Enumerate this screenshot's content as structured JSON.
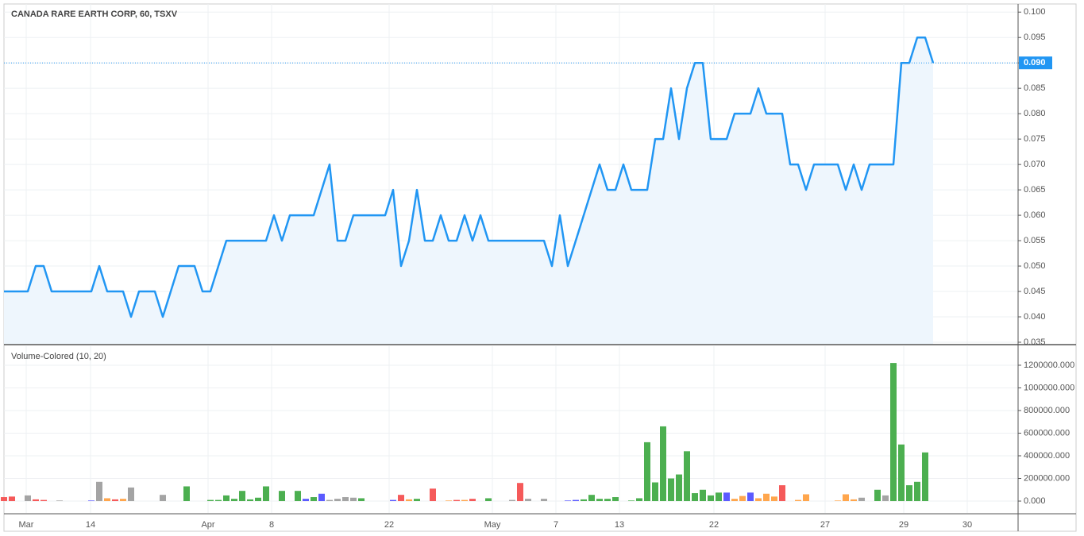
{
  "chart_data": [
    {
      "type": "line",
      "title": "CANADA RARE EARTH CORP, 60, TSXV",
      "color": "#2196f3",
      "fill": "#eef6fd",
      "values": [
        0.045,
        0.045,
        0.045,
        0.045,
        0.05,
        0.05,
        0.045,
        0.045,
        0.045,
        0.045,
        0.045,
        0.045,
        0.05,
        0.045,
        0.045,
        0.045,
        0.04,
        0.045,
        0.045,
        0.045,
        0.04,
        0.045,
        0.05,
        0.05,
        0.05,
        0.045,
        0.045,
        0.05,
        0.055,
        0.055,
        0.055,
        0.055,
        0.055,
        0.055,
        0.06,
        0.055,
        0.06,
        0.06,
        0.06,
        0.06,
        0.065,
        0.07,
        0.055,
        0.055,
        0.06,
        0.06,
        0.06,
        0.06,
        0.06,
        0.065,
        0.05,
        0.055,
        0.065,
        0.055,
        0.055,
        0.06,
        0.055,
        0.055,
        0.06,
        0.055,
        0.06,
        0.055,
        0.055,
        0.055,
        0.055,
        0.055,
        0.055,
        0.055,
        0.055,
        0.05,
        0.06,
        0.05,
        0.055,
        0.06,
        0.065,
        0.07,
        0.065,
        0.065,
        0.07,
        0.065,
        0.065,
        0.065,
        0.075,
        0.075,
        0.085,
        0.075,
        0.085,
        0.09,
        0.09,
        0.075,
        0.075,
        0.075,
        0.08,
        0.08,
        0.08,
        0.085,
        0.08,
        0.08,
        0.08,
        0.07,
        0.07,
        0.065,
        0.07,
        0.07,
        0.07,
        0.07,
        0.065,
        0.07,
        0.065,
        0.07,
        0.07,
        0.07,
        0.07,
        0.09,
        0.09,
        0.095,
        0.095,
        0.09
      ],
      "xlim": [
        0,
        127.7
      ],
      "ylim": [
        0.035,
        0.1016
      ],
      "yticks": [
        {
          "value": 0.035,
          "label": "0.035"
        },
        {
          "value": 0.04,
          "label": "0.040"
        },
        {
          "value": 0.045,
          "label": "0.045"
        },
        {
          "value": 0.05,
          "label": "0.050"
        },
        {
          "value": 0.055,
          "label": "0.055"
        },
        {
          "value": 0.06,
          "label": "0.060"
        },
        {
          "value": 0.065,
          "label": "0.065"
        },
        {
          "value": 0.07,
          "label": "0.070"
        },
        {
          "value": 0.075,
          "label": "0.075"
        },
        {
          "value": 0.08,
          "label": "0.080"
        },
        {
          "value": 0.085,
          "label": "0.085"
        },
        {
          "value": 0.09,
          "label": "0.090"
        },
        {
          "value": 0.095,
          "label": "0.095"
        },
        {
          "value": 0.1,
          "label": "0.100"
        }
      ],
      "price_line": {
        "value": 0.09,
        "label": "0.090"
      },
      "grid": true
    },
    {
      "type": "bar",
      "title": "Volume-Colored (10, 20)",
      "values": [
        35000,
        40000,
        0,
        50000,
        15000,
        10000,
        0,
        5000,
        0,
        0,
        0,
        5000,
        170000,
        25000,
        15000,
        20000,
        120000,
        0,
        0,
        0,
        55000,
        0,
        0,
        130000,
        0,
        0,
        10000,
        10000,
        50000,
        20000,
        90000,
        15000,
        30000,
        130000,
        0,
        90000,
        0,
        90000,
        20000,
        35000,
        65000,
        10000,
        20000,
        35000,
        30000,
        25000,
        0,
        0,
        0,
        10000,
        55000,
        15000,
        20000,
        0,
        110000,
        0,
        5000,
        10000,
        10000,
        20000,
        0,
        25000,
        0,
        0,
        10000,
        160000,
        20000,
        0,
        20000,
        0,
        0,
        5000,
        10000,
        15000,
        55000,
        20000,
        20000,
        35000,
        0,
        5000,
        25000,
        520000,
        165000,
        660000,
        200000,
        235000,
        440000,
        70000,
        100000,
        50000,
        75000,
        75000,
        20000,
        45000,
        75000,
        25000,
        65000,
        40000,
        140000,
        0,
        10000,
        60000,
        0,
        0,
        0,
        5000,
        60000,
        15000,
        30000,
        0,
        100000,
        50000,
        1220000,
        500000,
        140000,
        170000,
        430000,
        0
      ],
      "colors": [
        "#f55a5a",
        "#f55a5a",
        "#a4a4a4",
        "#a4a4a4",
        "#f55a5a",
        "#f55a5a",
        "#a4a4a4",
        "#a4a4a4",
        "#a4a4a4",
        "#a4a4a4",
        "#a4a4a4",
        "#5b5bff",
        "#a4a4a4",
        "#ffa64d",
        "#f55a5a",
        "#ffa64d",
        "#a4a4a4",
        "#a4a4a4",
        "#a4a4a4",
        "#a4a4a4",
        "#a4a4a4",
        "#a4a4a4",
        "#a4a4a4",
        "#4caf50",
        "#a4a4a4",
        "#a4a4a4",
        "#4caf50",
        "#4caf50",
        "#4caf50",
        "#4caf50",
        "#4caf50",
        "#4caf50",
        "#4caf50",
        "#4caf50",
        "#a4a4a4",
        "#4caf50",
        "#a4a4a4",
        "#4caf50",
        "#5b5bff",
        "#4caf50",
        "#5b5bff",
        "#a4a4a4",
        "#a4a4a4",
        "#a4a4a4",
        "#a4a4a4",
        "#4caf50",
        "#a4a4a4",
        "#a4a4a4",
        "#a4a4a4",
        "#5b5bff",
        "#f55a5a",
        "#ffa64d",
        "#4caf50",
        "#a4a4a4",
        "#f55a5a",
        "#a4a4a4",
        "#ffa64d",
        "#f55a5a",
        "#ffa64d",
        "#f55a5a",
        "#a4a4a4",
        "#4caf50",
        "#a4a4a4",
        "#a4a4a4",
        "#a4a4a4",
        "#f55a5a",
        "#a4a4a4",
        "#a4a4a4",
        "#a4a4a4",
        "#a4a4a4",
        "#a4a4a4",
        "#5b5bff",
        "#5b5bff",
        "#4caf50",
        "#4caf50",
        "#4caf50",
        "#4caf50",
        "#4caf50",
        "#a4a4a4",
        "#4caf50",
        "#4caf50",
        "#4caf50",
        "#4caf50",
        "#4caf50",
        "#4caf50",
        "#4caf50",
        "#4caf50",
        "#4caf50",
        "#4caf50",
        "#4caf50",
        "#4caf50",
        "#5b5bff",
        "#ffa64d",
        "#ffa64d",
        "#5b5bff",
        "#ffa64d",
        "#ffa64d",
        "#ffa64d",
        "#f55a5a",
        "#a4a4a4",
        "#ffa64d",
        "#ffa64d",
        "#a4a4a4",
        "#a4a4a4",
        "#a4a4a4",
        "#ffa64d",
        "#ffa64d",
        "#ffa64d",
        "#a4a4a4",
        "#a4a4a4",
        "#4caf50",
        "#a4a4a4",
        "#4caf50",
        "#4caf50",
        "#4caf50",
        "#4caf50",
        "#4caf50",
        "#a4a4a4"
      ],
      "xlim": [
        0,
        127.7
      ],
      "ylim": [
        -98000,
        1361000
      ],
      "yticks": [
        {
          "value": 0,
          "label": "0.000"
        },
        {
          "value": 200000,
          "label": "200000.000"
        },
        {
          "value": 400000,
          "label": "400000.000"
        },
        {
          "value": 600000,
          "label": "600000.000"
        },
        {
          "value": 800000,
          "label": "800000.000"
        },
        {
          "value": 1000000,
          "label": "1000000.000"
        },
        {
          "value": 1200000,
          "label": "1200000.000"
        }
      ],
      "xticks": [
        {
          "value": 2.8,
          "label": "Mar"
        },
        {
          "value": 10.9,
          "label": "14"
        },
        {
          "value": 25.7,
          "label": "Apr"
        },
        {
          "value": 33.7,
          "label": "8"
        },
        {
          "value": 48.5,
          "label": "22"
        },
        {
          "value": 61.5,
          "label": "May"
        },
        {
          "value": 69.5,
          "label": "7"
        },
        {
          "value": 77.5,
          "label": "13"
        },
        {
          "value": 89.4,
          "label": "22"
        },
        {
          "value": 103.4,
          "label": "27"
        },
        {
          "value": 113.3,
          "label": "29"
        },
        {
          "value": 121.3,
          "label": "30"
        }
      ],
      "grid": true
    }
  ]
}
